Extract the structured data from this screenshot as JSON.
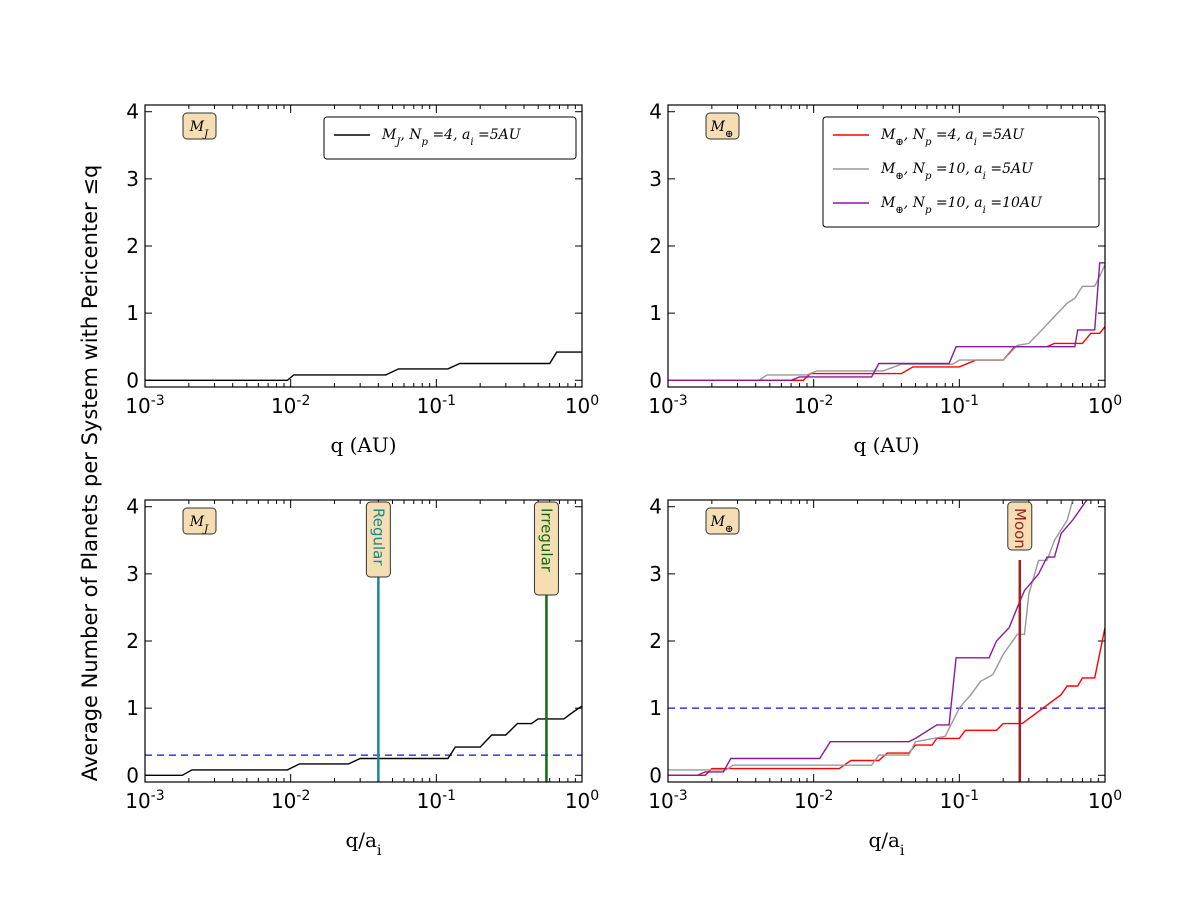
{
  "figure": {
    "ylabel": "Average Number of Planets per System with Pericenter ≤q"
  },
  "chart_data": [
    {
      "type": "line",
      "panel": "top-left",
      "xscale": "log",
      "xlim": [
        0.001,
        1
      ],
      "ylim": [
        -0.1,
        4.1
      ],
      "xticks": [
        0.001,
        0.01,
        0.1,
        1
      ],
      "xtick_labels": [
        {
          "base": "10",
          "exp": "-3"
        },
        {
          "base": "10",
          "exp": "-2"
        },
        {
          "base": "10",
          "exp": "-1"
        },
        {
          "base": "10",
          "exp": "0"
        }
      ],
      "yticks": [
        0,
        1,
        2,
        3,
        4
      ],
      "ytick_labels": [
        "0",
        "1",
        "2",
        "3",
        "4"
      ],
      "xlabel": "q (AU)",
      "tag": "M_J",
      "legend": "top-right",
      "series": [
        {
          "name": "M_J, N_p =4, a_i =5AU",
          "color": "#000000",
          "points": [
            [
              0.001,
              0
            ],
            [
              0.0095,
              0
            ],
            [
              0.0105,
              0.08
            ],
            [
              0.045,
              0.08
            ],
            [
              0.055,
              0.17
            ],
            [
              0.12,
              0.17
            ],
            [
              0.145,
              0.25
            ],
            [
              0.6,
              0.25
            ],
            [
              0.67,
              0.42
            ],
            [
              1,
              0.42
            ]
          ]
        }
      ],
      "vlines": [],
      "hline": null
    },
    {
      "type": "line",
      "panel": "top-right",
      "xscale": "log",
      "xlim": [
        0.001,
        1
      ],
      "ylim": [
        -0.1,
        4.1
      ],
      "xticks": [
        0.001,
        0.01,
        0.1,
        1
      ],
      "xtick_labels": [
        {
          "base": "10",
          "exp": "-3"
        },
        {
          "base": "10",
          "exp": "-2"
        },
        {
          "base": "10",
          "exp": "-1"
        },
        {
          "base": "10",
          "exp": "0"
        }
      ],
      "yticks": [
        0,
        1,
        2,
        3,
        4
      ],
      "ytick_labels": [
        "0",
        "1",
        "2",
        "3",
        "4"
      ],
      "xlabel": "q (AU)",
      "tag": "M_⊕",
      "legend": "top-right",
      "series": [
        {
          "name": "M_⊕, N_p =4, a_i =5AU",
          "color": "#ff0000",
          "points": [
            [
              0.001,
              0
            ],
            [
              0.0085,
              0
            ],
            [
              0.0095,
              0.1
            ],
            [
              0.04,
              0.1
            ],
            [
              0.048,
              0.2
            ],
            [
              0.1,
              0.2
            ],
            [
              0.13,
              0.3
            ],
            [
              0.2,
              0.3
            ],
            [
              0.24,
              0.5
            ],
            [
              0.4,
              0.5
            ],
            [
              0.45,
              0.55
            ],
            [
              0.7,
              0.55
            ],
            [
              0.8,
              0.7
            ],
            [
              0.92,
              0.7
            ],
            [
              1,
              0.8
            ]
          ]
        },
        {
          "name": "M_⊕, N_p =10, a_i =5AU",
          "color": "#999999",
          "points": [
            [
              0.001,
              0
            ],
            [
              0.0042,
              0
            ],
            [
              0.0048,
              0.08
            ],
            [
              0.009,
              0.08
            ],
            [
              0.0105,
              0.14
            ],
            [
              0.03,
              0.14
            ],
            [
              0.04,
              0.24
            ],
            [
              0.09,
              0.24
            ],
            [
              0.1,
              0.3
            ],
            [
              0.2,
              0.3
            ],
            [
              0.25,
              0.52
            ],
            [
              0.3,
              0.55
            ],
            [
              0.35,
              0.7
            ],
            [
              0.45,
              0.95
            ],
            [
              0.55,
              1.15
            ],
            [
              0.62,
              1.22
            ],
            [
              0.7,
              1.4
            ],
            [
              0.85,
              1.4
            ],
            [
              0.92,
              1.55
            ],
            [
              1,
              1.72
            ]
          ]
        },
        {
          "name": "M_⊕, N_p =10, a_i =10AU",
          "color": "#8b1a9b",
          "points": [
            [
              0.001,
              0
            ],
            [
              0.007,
              0
            ],
            [
              0.008,
              0.05
            ],
            [
              0.025,
              0.05
            ],
            [
              0.028,
              0.25
            ],
            [
              0.085,
              0.25
            ],
            [
              0.095,
              0.5
            ],
            [
              0.25,
              0.5
            ],
            [
              0.3,
              0.5
            ],
            [
              0.62,
              0.5
            ],
            [
              0.65,
              0.75
            ],
            [
              0.85,
              0.75
            ],
            [
              0.92,
              1.75
            ],
            [
              1,
              1.75
            ]
          ]
        }
      ],
      "vlines": [],
      "hline": null
    },
    {
      "type": "line",
      "panel": "bottom-left",
      "xscale": "log",
      "xlim": [
        0.001,
        1
      ],
      "ylim": [
        -0.1,
        4.1
      ],
      "xticks": [
        0.001,
        0.01,
        0.1,
        1
      ],
      "xtick_labels": [
        {
          "base": "10",
          "exp": "-3"
        },
        {
          "base": "10",
          "exp": "-2"
        },
        {
          "base": "10",
          "exp": "-1"
        },
        {
          "base": "10",
          "exp": "0"
        }
      ],
      "yticks": [
        0,
        1,
        2,
        3,
        4
      ],
      "ytick_labels": [
        "0",
        "1",
        "2",
        "3",
        "4"
      ],
      "xlabel": "q/a_i",
      "tag": "M_J",
      "legend": "none",
      "series": [
        {
          "name": "M_J",
          "color": "#000000",
          "points": [
            [
              0.001,
              0
            ],
            [
              0.0018,
              0
            ],
            [
              0.0021,
              0.08
            ],
            [
              0.0095,
              0.08
            ],
            [
              0.0115,
              0.17
            ],
            [
              0.025,
              0.17
            ],
            [
              0.03,
              0.25
            ],
            [
              0.12,
              0.25
            ],
            [
              0.135,
              0.42
            ],
            [
              0.2,
              0.42
            ],
            [
              0.24,
              0.6
            ],
            [
              0.3,
              0.6
            ],
            [
              0.36,
              0.77
            ],
            [
              0.45,
              0.77
            ],
            [
              0.5,
              0.84
            ],
            [
              0.75,
              0.84
            ],
            [
              0.88,
              0.95
            ],
            [
              1,
              1.03
            ]
          ]
        }
      ],
      "vlines": [
        {
          "x": 0.04,
          "label": "Regular",
          "color": "#1a8a8a"
        },
        {
          "x": 0.57,
          "label": "Irregular",
          "color": "#0e6e0e"
        }
      ],
      "hline": {
        "y": 0.3,
        "color": "#4444ff",
        "style": "dashed"
      }
    },
    {
      "type": "line",
      "panel": "bottom-right",
      "xscale": "log",
      "xlim": [
        0.001,
        1
      ],
      "ylim": [
        -0.1,
        4.1
      ],
      "xticks": [
        0.001,
        0.01,
        0.1,
        1
      ],
      "xtick_labels": [
        {
          "base": "10",
          "exp": "-3"
        },
        {
          "base": "10",
          "exp": "-2"
        },
        {
          "base": "10",
          "exp": "-1"
        },
        {
          "base": "10",
          "exp": "0"
        }
      ],
      "yticks": [
        0,
        1,
        2,
        3,
        4
      ],
      "ytick_labels": [
        "0",
        "1",
        "2",
        "3",
        "4"
      ],
      "xlabel": "q/a_i",
      "tag": "M_⊕",
      "legend": "none",
      "series": [
        {
          "name": "M_⊕, N_p =4, a_i =5AU",
          "color": "#ff0000",
          "points": [
            [
              0.001,
              0
            ],
            [
              0.0018,
              0
            ],
            [
              0.002,
              0.1
            ],
            [
              0.015,
              0.1
            ],
            [
              0.018,
              0.22
            ],
            [
              0.028,
              0.22
            ],
            [
              0.032,
              0.33
            ],
            [
              0.045,
              0.33
            ],
            [
              0.05,
              0.45
            ],
            [
              0.065,
              0.45
            ],
            [
              0.07,
              0.55
            ],
            [
              0.1,
              0.55
            ],
            [
              0.11,
              0.67
            ],
            [
              0.18,
              0.67
            ],
            [
              0.2,
              0.77
            ],
            [
              0.27,
              0.77
            ],
            [
              0.5,
              1.2
            ],
            [
              0.55,
              1.33
            ],
            [
              0.65,
              1.33
            ],
            [
              0.7,
              1.45
            ],
            [
              0.85,
              1.45
            ],
            [
              1,
              2.2
            ]
          ]
        },
        {
          "name": "M_⊕, N_p =10, a_i =5AU",
          "color": "#999999",
          "points": [
            [
              0.001,
              0.08
            ],
            [
              0.0025,
              0.08
            ],
            [
              0.0028,
              0.15
            ],
            [
              0.025,
              0.15
            ],
            [
              0.028,
              0.3
            ],
            [
              0.045,
              0.3
            ],
            [
              0.05,
              0.5
            ],
            [
              0.08,
              0.58
            ],
            [
              0.1,
              1.0
            ],
            [
              0.12,
              1.2
            ],
            [
              0.14,
              1.4
            ],
            [
              0.17,
              1.5
            ],
            [
              0.2,
              1.8
            ],
            [
              0.25,
              2.1
            ],
            [
              0.28,
              2.1
            ],
            [
              0.3,
              2.7
            ],
            [
              0.35,
              3.2
            ],
            [
              0.4,
              3.2
            ],
            [
              0.45,
              3.5
            ],
            [
              0.55,
              3.8
            ],
            [
              0.6,
              4.1
            ]
          ]
        },
        {
          "name": "M_⊕, N_p =10, a_i =10AU",
          "color": "#8b1a9b",
          "points": [
            [
              0.001,
              0
            ],
            [
              0.0016,
              0
            ],
            [
              0.0018,
              0.05
            ],
            [
              0.0024,
              0.05
            ],
            [
              0.0027,
              0.25
            ],
            [
              0.011,
              0.25
            ],
            [
              0.013,
              0.5
            ],
            [
              0.045,
              0.5
            ],
            [
              0.05,
              0.55
            ],
            [
              0.07,
              0.75
            ],
            [
              0.085,
              0.75
            ],
            [
              0.095,
              1.75
            ],
            [
              0.16,
              1.75
            ],
            [
              0.18,
              2.0
            ],
            [
              0.22,
              2.2
            ],
            [
              0.25,
              2.5
            ],
            [
              0.28,
              2.75
            ],
            [
              0.35,
              3.0
            ],
            [
              0.4,
              3.25
            ],
            [
              0.45,
              3.25
            ],
            [
              0.5,
              3.6
            ],
            [
              0.6,
              3.8
            ],
            [
              0.75,
              4.1
            ]
          ]
        }
      ],
      "vlines": [
        {
          "x": 0.26,
          "label": "Moon",
          "color": "#a02020"
        }
      ],
      "hline": {
        "y": 1.0,
        "color": "#4444ff",
        "style": "dashed"
      }
    }
  ]
}
